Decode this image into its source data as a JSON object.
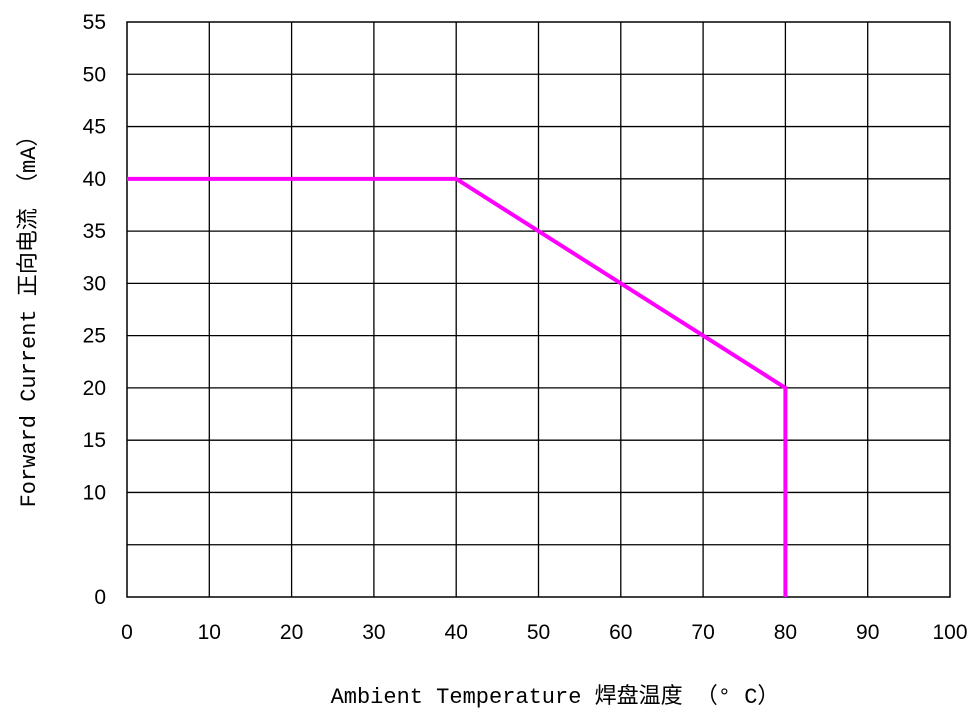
{
  "chart_data": {
    "type": "line",
    "xlabel": "Ambient Temperature 焊盘温度 （° C）",
    "ylabel": "Forward Current 正向电流 （mA）",
    "xlim": [
      0,
      100
    ],
    "ylim": [
      0,
      55
    ],
    "x_ticks": [
      0,
      10,
      20,
      30,
      40,
      50,
      60,
      70,
      80,
      90,
      100
    ],
    "y_ticks": [
      0,
      10,
      15,
      20,
      25,
      30,
      35,
      40,
      45,
      50,
      55
    ],
    "grid": true,
    "legend": "none",
    "series": [
      {
        "color": "#ff00ff",
        "x": [
          0,
          40,
          80,
          80
        ],
        "y": [
          40,
          40,
          20,
          0
        ]
      }
    ]
  }
}
